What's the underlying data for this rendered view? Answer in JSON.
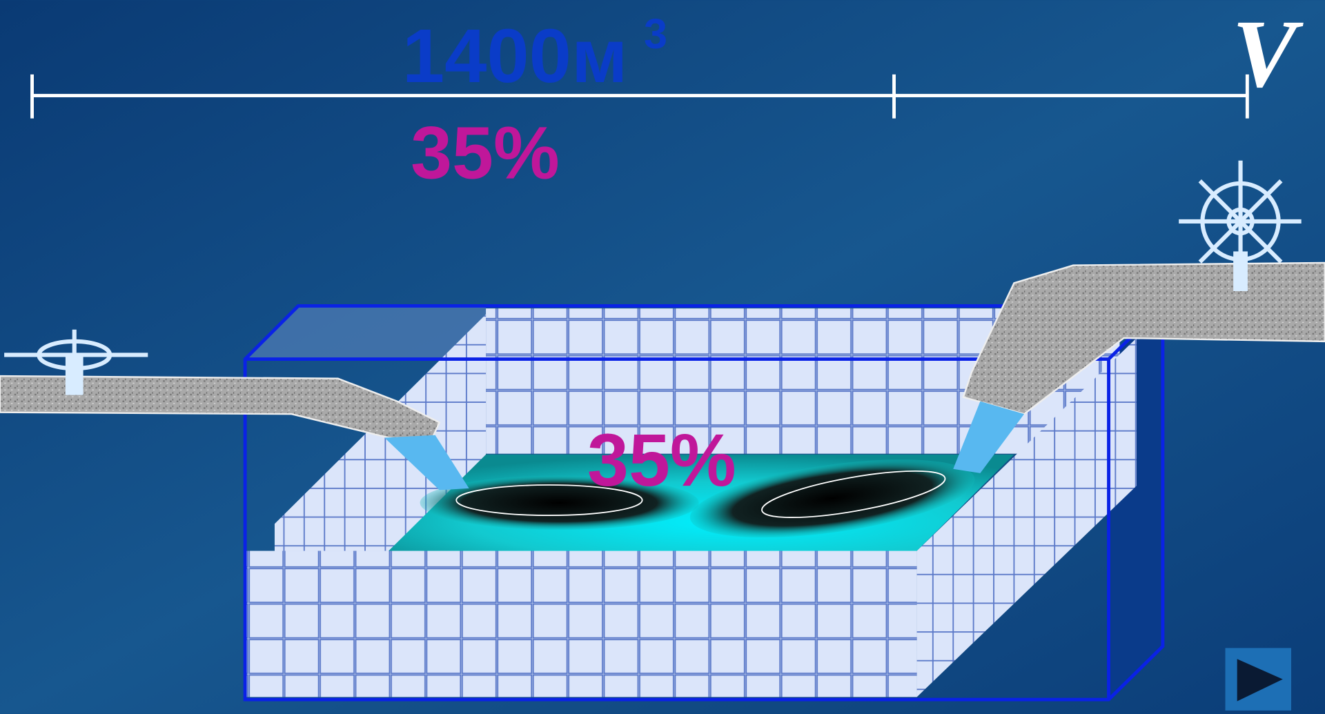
{
  "labels": {
    "volume": "1400м",
    "volume_exponent": "3",
    "top_percent": "35%",
    "pool_percent": "35%",
    "axis_label": "V"
  }
}
